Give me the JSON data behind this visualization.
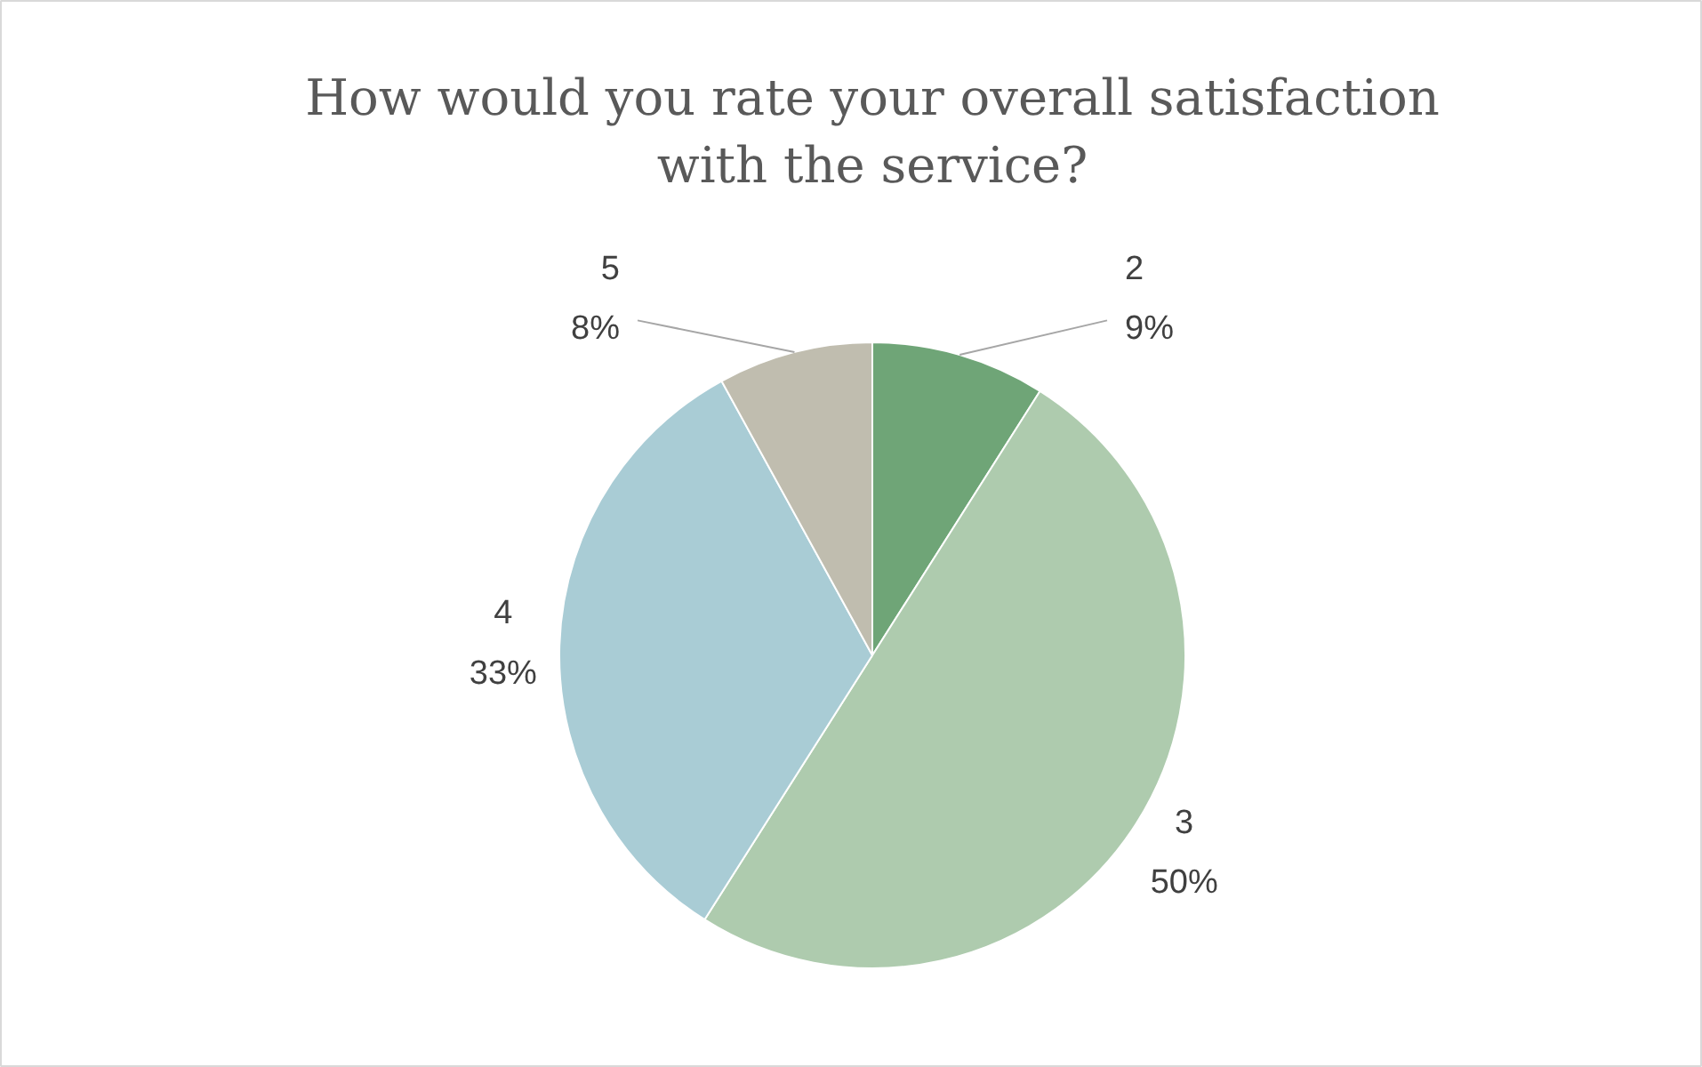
{
  "chart_data": {
    "type": "pie",
    "title": "How would you rate your overall satisfaction\nwith the service?",
    "categories": [
      "2",
      "3",
      "4",
      "5"
    ],
    "values": [
      9,
      50,
      33,
      8
    ],
    "value_labels": [
      "9%",
      "50%",
      "33%",
      "8%"
    ],
    "colors": [
      "#6fa577",
      "#aecbae",
      "#a9ccd5",
      "#c0bdaf"
    ]
  }
}
